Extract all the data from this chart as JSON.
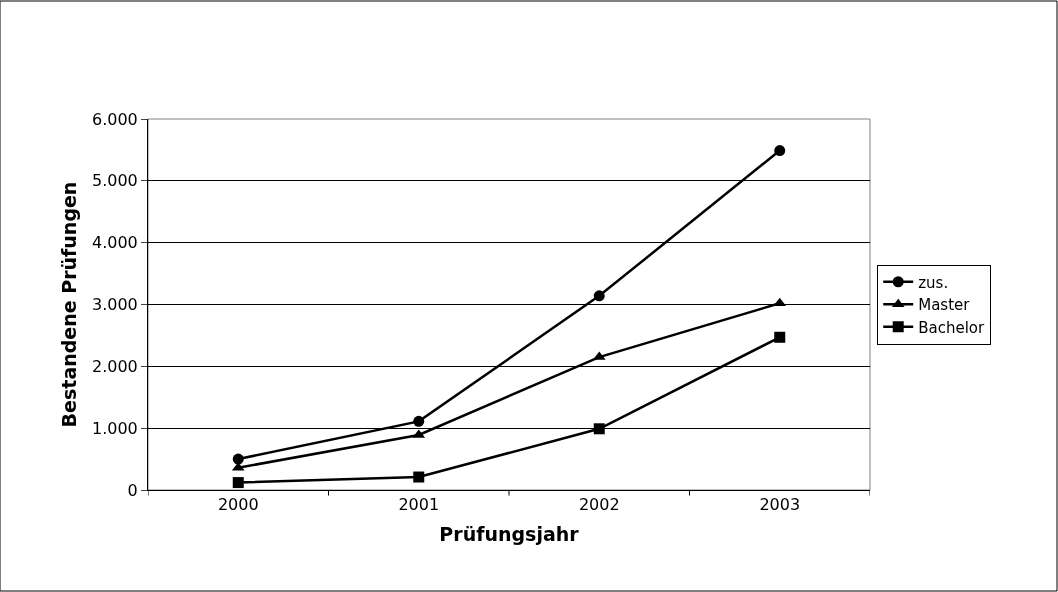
{
  "chart_data": {
    "type": "line",
    "xlabel": "Prüfungsjahr",
    "ylabel": "Bestandene Prüfungen",
    "categories": [
      "2000",
      "2001",
      "2002",
      "2003"
    ],
    "series": [
      {
        "name": "zus.",
        "color": "#000000",
        "marker": "circle",
        "values": [
          500,
          1110,
          3140,
          5490
        ]
      },
      {
        "name": "Master",
        "color": "#000000",
        "marker": "triangle",
        "values": [
          360,
          890,
          2150,
          3020
        ]
      },
      {
        "name": "Bachelor",
        "color": "#000000",
        "marker": "square",
        "values": [
          120,
          210,
          990,
          2470
        ]
      }
    ],
    "ylim": [
      0,
      6000
    ],
    "yticks": [
      {
        "value": 0,
        "label": "0"
      },
      {
        "value": 1000,
        "label": "1.000"
      },
      {
        "value": 2000,
        "label": "2.000"
      },
      {
        "value": 3000,
        "label": "3.000"
      },
      {
        "value": 4000,
        "label": "4.000"
      },
      {
        "value": 5000,
        "label": "5.000"
      },
      {
        "value": 6000,
        "label": "6.000"
      }
    ],
    "grid": "y",
    "legend": "right",
    "line_style": "solid"
  }
}
